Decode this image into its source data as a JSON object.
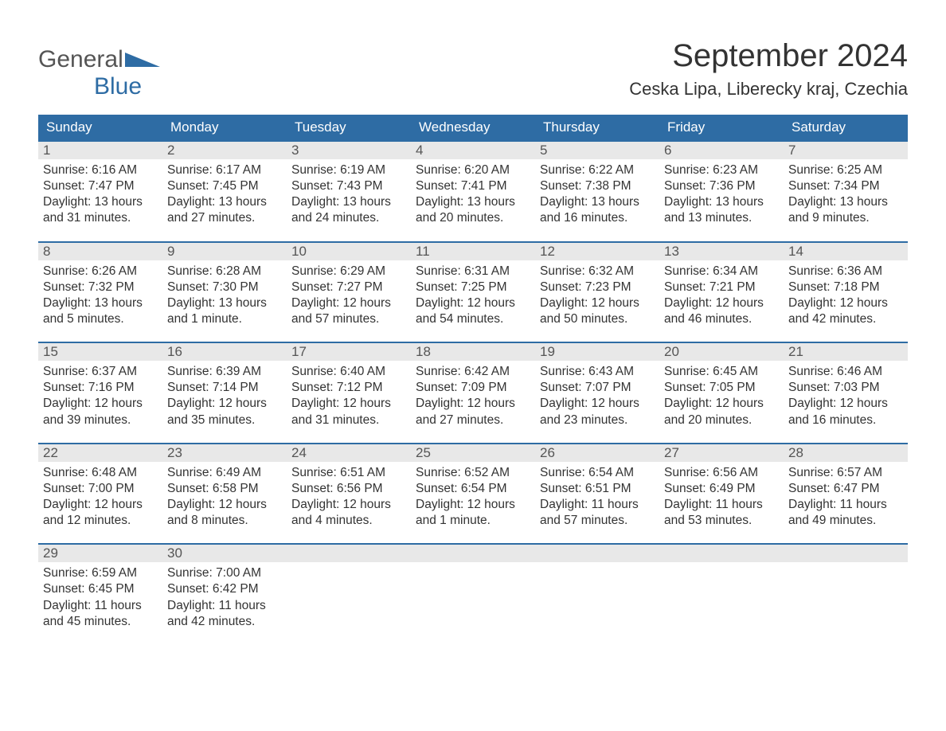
{
  "brand": {
    "part1": "General",
    "part2": "Blue"
  },
  "title": "September 2024",
  "location": "Ceska Lipa, Liberecky kraj, Czechia",
  "colors": {
    "header_bg": "#2e6ca4",
    "header_text": "#ffffff",
    "daynum_bg": "#e8e8e8",
    "daynum_text": "#555555",
    "body_text": "#333333",
    "border": "#2e6ca4",
    "background": "#ffffff"
  },
  "typography": {
    "title_fontsize": 40,
    "location_fontsize": 22,
    "dayhead_fontsize": 17,
    "daynum_fontsize": 17,
    "info_fontsize": 15.5,
    "font_family": "Arial"
  },
  "dayheads": [
    "Sunday",
    "Monday",
    "Tuesday",
    "Wednesday",
    "Thursday",
    "Friday",
    "Saturday"
  ],
  "weeks": [
    [
      {
        "n": "1",
        "sr": "Sunrise: 6:16 AM",
        "ss": "Sunset: 7:47 PM",
        "d1": "Daylight: 13 hours",
        "d2": "and 31 minutes."
      },
      {
        "n": "2",
        "sr": "Sunrise: 6:17 AM",
        "ss": "Sunset: 7:45 PM",
        "d1": "Daylight: 13 hours",
        "d2": "and 27 minutes."
      },
      {
        "n": "3",
        "sr": "Sunrise: 6:19 AM",
        "ss": "Sunset: 7:43 PM",
        "d1": "Daylight: 13 hours",
        "d2": "and 24 minutes."
      },
      {
        "n": "4",
        "sr": "Sunrise: 6:20 AM",
        "ss": "Sunset: 7:41 PM",
        "d1": "Daylight: 13 hours",
        "d2": "and 20 minutes."
      },
      {
        "n": "5",
        "sr": "Sunrise: 6:22 AM",
        "ss": "Sunset: 7:38 PM",
        "d1": "Daylight: 13 hours",
        "d2": "and 16 minutes."
      },
      {
        "n": "6",
        "sr": "Sunrise: 6:23 AM",
        "ss": "Sunset: 7:36 PM",
        "d1": "Daylight: 13 hours",
        "d2": "and 13 minutes."
      },
      {
        "n": "7",
        "sr": "Sunrise: 6:25 AM",
        "ss": "Sunset: 7:34 PM",
        "d1": "Daylight: 13 hours",
        "d2": "and 9 minutes."
      }
    ],
    [
      {
        "n": "8",
        "sr": "Sunrise: 6:26 AM",
        "ss": "Sunset: 7:32 PM",
        "d1": "Daylight: 13 hours",
        "d2": "and 5 minutes."
      },
      {
        "n": "9",
        "sr": "Sunrise: 6:28 AM",
        "ss": "Sunset: 7:30 PM",
        "d1": "Daylight: 13 hours",
        "d2": "and 1 minute."
      },
      {
        "n": "10",
        "sr": "Sunrise: 6:29 AM",
        "ss": "Sunset: 7:27 PM",
        "d1": "Daylight: 12 hours",
        "d2": "and 57 minutes."
      },
      {
        "n": "11",
        "sr": "Sunrise: 6:31 AM",
        "ss": "Sunset: 7:25 PM",
        "d1": "Daylight: 12 hours",
        "d2": "and 54 minutes."
      },
      {
        "n": "12",
        "sr": "Sunrise: 6:32 AM",
        "ss": "Sunset: 7:23 PM",
        "d1": "Daylight: 12 hours",
        "d2": "and 50 minutes."
      },
      {
        "n": "13",
        "sr": "Sunrise: 6:34 AM",
        "ss": "Sunset: 7:21 PM",
        "d1": "Daylight: 12 hours",
        "d2": "and 46 minutes."
      },
      {
        "n": "14",
        "sr": "Sunrise: 6:36 AM",
        "ss": "Sunset: 7:18 PM",
        "d1": "Daylight: 12 hours",
        "d2": "and 42 minutes."
      }
    ],
    [
      {
        "n": "15",
        "sr": "Sunrise: 6:37 AM",
        "ss": "Sunset: 7:16 PM",
        "d1": "Daylight: 12 hours",
        "d2": "and 39 minutes."
      },
      {
        "n": "16",
        "sr": "Sunrise: 6:39 AM",
        "ss": "Sunset: 7:14 PM",
        "d1": "Daylight: 12 hours",
        "d2": "and 35 minutes."
      },
      {
        "n": "17",
        "sr": "Sunrise: 6:40 AM",
        "ss": "Sunset: 7:12 PM",
        "d1": "Daylight: 12 hours",
        "d2": "and 31 minutes."
      },
      {
        "n": "18",
        "sr": "Sunrise: 6:42 AM",
        "ss": "Sunset: 7:09 PM",
        "d1": "Daylight: 12 hours",
        "d2": "and 27 minutes."
      },
      {
        "n": "19",
        "sr": "Sunrise: 6:43 AM",
        "ss": "Sunset: 7:07 PM",
        "d1": "Daylight: 12 hours",
        "d2": "and 23 minutes."
      },
      {
        "n": "20",
        "sr": "Sunrise: 6:45 AM",
        "ss": "Sunset: 7:05 PM",
        "d1": "Daylight: 12 hours",
        "d2": "and 20 minutes."
      },
      {
        "n": "21",
        "sr": "Sunrise: 6:46 AM",
        "ss": "Sunset: 7:03 PM",
        "d1": "Daylight: 12 hours",
        "d2": "and 16 minutes."
      }
    ],
    [
      {
        "n": "22",
        "sr": "Sunrise: 6:48 AM",
        "ss": "Sunset: 7:00 PM",
        "d1": "Daylight: 12 hours",
        "d2": "and 12 minutes."
      },
      {
        "n": "23",
        "sr": "Sunrise: 6:49 AM",
        "ss": "Sunset: 6:58 PM",
        "d1": "Daylight: 12 hours",
        "d2": "and 8 minutes."
      },
      {
        "n": "24",
        "sr": "Sunrise: 6:51 AM",
        "ss": "Sunset: 6:56 PM",
        "d1": "Daylight: 12 hours",
        "d2": "and 4 minutes."
      },
      {
        "n": "25",
        "sr": "Sunrise: 6:52 AM",
        "ss": "Sunset: 6:54 PM",
        "d1": "Daylight: 12 hours",
        "d2": "and 1 minute."
      },
      {
        "n": "26",
        "sr": "Sunrise: 6:54 AM",
        "ss": "Sunset: 6:51 PM",
        "d1": "Daylight: 11 hours",
        "d2": "and 57 minutes."
      },
      {
        "n": "27",
        "sr": "Sunrise: 6:56 AM",
        "ss": "Sunset: 6:49 PM",
        "d1": "Daylight: 11 hours",
        "d2": "and 53 minutes."
      },
      {
        "n": "28",
        "sr": "Sunrise: 6:57 AM",
        "ss": "Sunset: 6:47 PM",
        "d1": "Daylight: 11 hours",
        "d2": "and 49 minutes."
      }
    ],
    [
      {
        "n": "29",
        "sr": "Sunrise: 6:59 AM",
        "ss": "Sunset: 6:45 PM",
        "d1": "Daylight: 11 hours",
        "d2": "and 45 minutes."
      },
      {
        "n": "30",
        "sr": "Sunrise: 7:00 AM",
        "ss": "Sunset: 6:42 PM",
        "d1": "Daylight: 11 hours",
        "d2": "and 42 minutes."
      },
      {
        "n": "",
        "sr": "",
        "ss": "",
        "d1": "",
        "d2": ""
      },
      {
        "n": "",
        "sr": "",
        "ss": "",
        "d1": "",
        "d2": ""
      },
      {
        "n": "",
        "sr": "",
        "ss": "",
        "d1": "",
        "d2": ""
      },
      {
        "n": "",
        "sr": "",
        "ss": "",
        "d1": "",
        "d2": ""
      },
      {
        "n": "",
        "sr": "",
        "ss": "",
        "d1": "",
        "d2": ""
      }
    ]
  ]
}
